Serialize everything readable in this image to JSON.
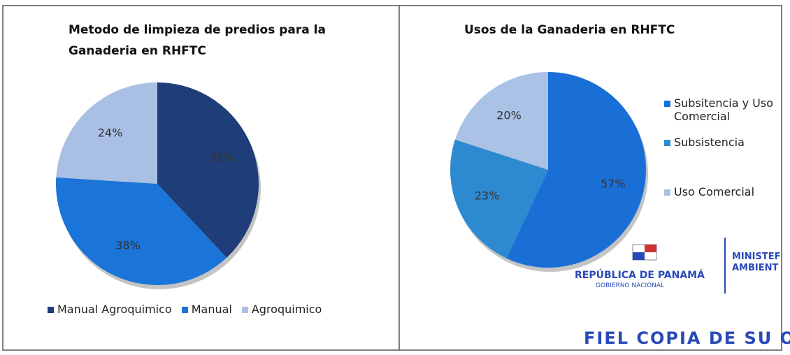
{
  "chart_data": [
    {
      "type": "pie",
      "title": "Metodo de limpieza de predios para la Ganaderia en RHFTC",
      "categories": [
        "Manual Agroquimico",
        "Manual",
        "Agroquimico"
      ],
      "values": [
        38,
        38,
        24
      ],
      "value_labels": [
        "38%",
        "38%",
        "24%"
      ],
      "colors": [
        "#1f3d78",
        "#1b74d8",
        "#a9bfe3"
      ],
      "legend": "bottom"
    },
    {
      "type": "pie",
      "title": "Usos de la Ganaderia en RHFTC",
      "categories": [
        "Subsitencia y Uso Comercial",
        "Subsistencia",
        "Uso Comercial"
      ],
      "values": [
        57,
        23,
        20
      ],
      "value_labels": [
        "57%",
        "23%",
        "20%"
      ],
      "colors": [
        "#1a6fd6",
        "#2e8ad0",
        "#a9c2e6"
      ],
      "legend": "right"
    }
  ],
  "stamp": {
    "country": "REPÚBLICA DE PANAMÁ",
    "government": "GOBIERNO NACIONAL",
    "ministry": [
      "MINISTEF",
      "AMBIENT"
    ],
    "certification": "FIEL COPIA DE SU ORIGI"
  }
}
